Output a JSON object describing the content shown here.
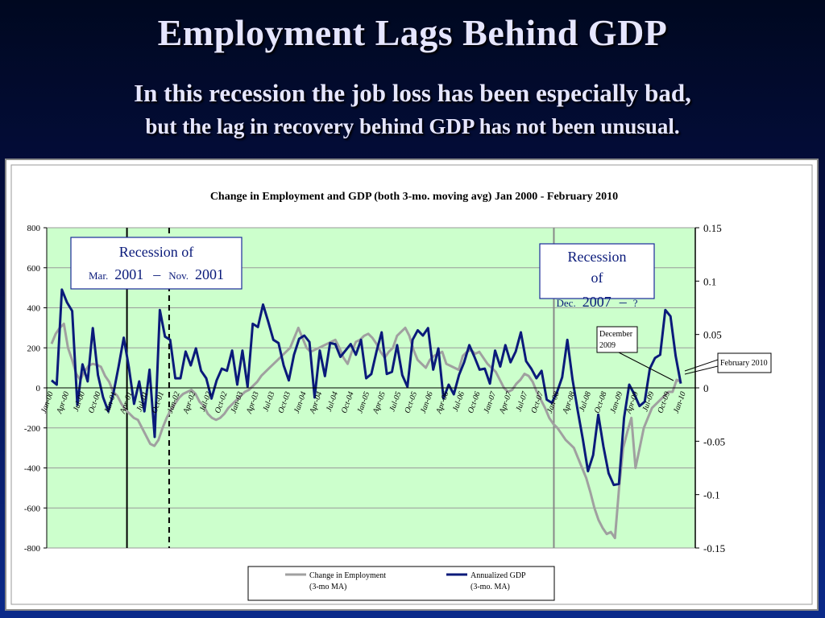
{
  "slide": {
    "title": "Employment Lags Behind GDP",
    "subtitle_line1": "In this recession the job loss has been especially bad,",
    "subtitle_line2": "but the lag in recovery behind GDP has not been unusual."
  },
  "chart_data": {
    "type": "line",
    "title": "Change in Employment and GDP (both 3-mo. moving avg) Jan 2000 - February 2010",
    "x_tick_labels": [
      "Jan-00",
      "Apr-00",
      "Jul-00",
      "Oct-00",
      "Jan-01",
      "Apr-01",
      "Jul-01",
      "Oct-01",
      "Jan-02",
      "Apr-02",
      "Jul-02",
      "Oct-02",
      "Jan-03",
      "Apr-03",
      "Jul-03",
      "Oct-03",
      "Jan-04",
      "Apr-04",
      "Jul-04",
      "Oct-04",
      "Jan-05",
      "Apr-05",
      "Jul-05",
      "Oct-05",
      "Jan-06",
      "Apr-06",
      "Jul-06",
      "Oct-06",
      "Jan-07",
      "Apr-07",
      "Jul-07",
      "Oct-07",
      "Jan-08",
      "Apr-08",
      "Jul-08",
      "Oct-08",
      "Jan-09",
      "Apr-09",
      "Jul-09",
      "Oct-09",
      "Jan-10"
    ],
    "y_left": {
      "min": -800,
      "max": 800,
      "ticks": [
        "800",
        "600",
        "400",
        "200",
        "0",
        "-200",
        "-400",
        "-600",
        "-800"
      ]
    },
    "y_right": {
      "min": -0.15,
      "max": 0.15,
      "ticks": [
        "0.15",
        "0.1",
        "0.05",
        "0",
        "-0.05",
        "-0.1",
        "-0.15"
      ]
    },
    "grid": true,
    "plot_background": "#ccffcc",
    "series": [
      {
        "name": "Change in Employment (3-mo MA)",
        "legend_line1": "Change in Employment",
        "legend_line2": "(3-mo MA)",
        "axis": "left",
        "color": "#a0a0a0",
        "values": [
          220,
          270,
          300,
          320,
          200,
          140,
          70,
          40,
          80,
          110,
          120,
          115,
          105,
          60,
          30,
          -20,
          -40,
          -80,
          -110,
          -130,
          -150,
          -160,
          -200,
          -240,
          -280,
          -290,
          -260,
          -200,
          -150,
          -110,
          -80,
          -50,
          -30,
          -20,
          -10,
          -30,
          -70,
          -90,
          -130,
          -150,
          -160,
          -150,
          -130,
          -100,
          -80,
          -60,
          -40,
          -20,
          -10,
          10,
          30,
          60,
          80,
          100,
          120,
          140,
          160,
          180,
          200,
          250,
          300,
          250,
          200,
          180,
          190,
          200,
          210,
          220,
          230,
          240,
          200,
          150,
          120,
          180,
          230,
          240,
          260,
          270,
          250,
          220,
          180,
          150,
          180,
          200,
          260,
          280,
          300,
          260,
          190,
          140,
          120,
          100,
          140,
          160,
          170,
          180,
          120,
          110,
          100,
          90,
          160,
          180,
          190,
          170,
          180,
          150,
          120,
          100,
          80,
          40,
          0,
          -20,
          -10,
          20,
          40,
          70,
          60,
          30,
          -20,
          -60,
          -100,
          -150,
          -180,
          -200,
          -230,
          -260,
          -280,
          -300,
          -350,
          -400,
          -450,
          -520,
          -600,
          -660,
          -700,
          -730,
          -720,
          -750,
          -500,
          -300,
          -220,
          -150,
          -400,
          -300,
          -200,
          -150,
          -100,
          -80,
          -60,
          -40,
          -20,
          -20,
          40,
          30
        ]
      },
      {
        "name": "Annualized GDP (3-mo. MA)",
        "legend_line1": "Annualized GDP",
        "legend_line2": "(3-mo. MA)",
        "axis": "right",
        "color": "#0a1a7a",
        "values": [
          0.007,
          0.003,
          0.092,
          0.08,
          0.072,
          -0.016,
          0.022,
          0.006,
          0.056,
          0.012,
          -0.009,
          -0.022,
          -0.005,
          0.02,
          0.047,
          0.019,
          -0.015,
          0.006,
          -0.022,
          0.017,
          -0.046,
          0.073,
          0.048,
          0.045,
          0.009,
          0.009,
          0.034,
          0.021,
          0.037,
          0.016,
          0.009,
          -0.01,
          0.007,
          0.018,
          0.016,
          0.035,
          0.003,
          0.035,
          0.001,
          0.06,
          0.057,
          0.078,
          0.062,
          0.045,
          0.042,
          0.021,
          0.007,
          0.031,
          0.046,
          0.049,
          0.043,
          -0.009,
          0.035,
          0.011,
          0.042,
          0.041,
          0.029,
          0.035,
          0.041,
          0.031,
          0.045,
          0.009,
          0.013,
          0.034,
          0.052,
          0.013,
          0.015,
          0.04,
          0.012,
          0.001,
          0.045,
          0.054,
          0.049,
          0.056,
          0.017,
          0.037,
          -0.01,
          0.003,
          -0.006,
          0.012,
          0.024,
          0.04,
          0.029,
          0.017,
          0.018,
          0.004,
          0.035,
          0.02,
          0.04,
          0.024,
          0.034,
          0.052,
          0.025,
          0.018,
          0.009,
          0.016,
          -0.011,
          -0.014,
          -0.004,
          0.01,
          0.045,
          0.008,
          -0.021,
          -0.048,
          -0.078,
          -0.063,
          -0.025,
          -0.055,
          -0.08,
          -0.091,
          -0.09,
          -0.028,
          0.003,
          -0.006,
          -0.017,
          -0.013,
          0.018,
          0.028,
          0.031,
          0.073,
          0.067,
          0.03,
          0.004
        ]
      }
    ],
    "annotations": {
      "recession1": {
        "title": "Recession of",
        "start_month": "Mar.",
        "start_year": "2001",
        "end_month": "Nov.",
        "end_year": "2001",
        "dash": "–"
      },
      "recession2": {
        "line1": "Recession",
        "line2": "of",
        "start_month": "Dec.",
        "start_year": "2007",
        "dash": "–",
        "end": "?"
      },
      "callout_dec2009": {
        "line1": "December",
        "line2": "2009"
      },
      "callout_feb2010": {
        "text": "February 2010"
      }
    }
  }
}
